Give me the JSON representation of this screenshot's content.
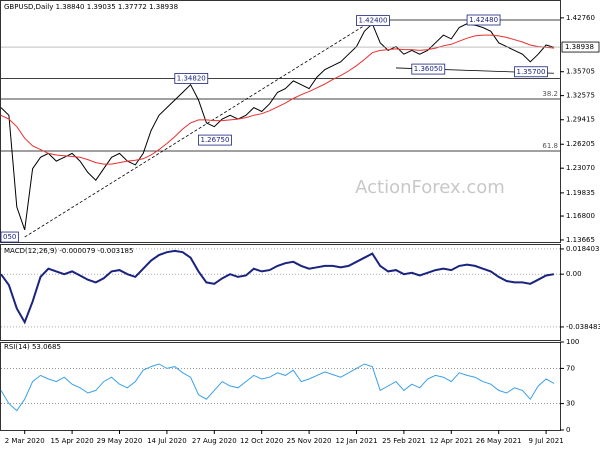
{
  "chart_data": [
    {
      "type": "line",
      "title": "GBPUSD,Daily 1.38840 1.39035 1.37772 1.38938",
      "watermark": "ActionForex.com",
      "categories": [
        null,
        null,
        null,
        "2 Mar 2020",
        null,
        null,
        null,
        null,
        null,
        "15 Apr 2020",
        null,
        null,
        null,
        null,
        null,
        "29 May 2020",
        null,
        null,
        null,
        null,
        null,
        "14 Jul 2020",
        null,
        null,
        null,
        null,
        null,
        "27 Aug 2020",
        null,
        null,
        null,
        null,
        null,
        "12 Oct 2020",
        null,
        null,
        null,
        null,
        null,
        "25 Nov 2020",
        null,
        null,
        null,
        null,
        null,
        "12 Jan 2021",
        null,
        null,
        null,
        null,
        null,
        "25 Feb 2021",
        null,
        null,
        null,
        null,
        null,
        "12 Apr 2021",
        null,
        null,
        null,
        null,
        null,
        "26 May 2021",
        null,
        null,
        null,
        null,
        null,
        "9 Jul 2021",
        null
      ],
      "series": [
        {
          "color": "#000000",
          "values": [
            1.31,
            1.3,
            1.18,
            1.15,
            1.23,
            1.245,
            1.25,
            1.24,
            1.245,
            1.25,
            1.24,
            1.225,
            1.215,
            1.23,
            1.245,
            1.25,
            1.24,
            1.235,
            1.25,
            1.28,
            1.3,
            1.31,
            1.32,
            1.33,
            1.34,
            1.32,
            1.29,
            1.285,
            1.295,
            1.3,
            1.295,
            1.3,
            1.31,
            1.305,
            1.315,
            1.33,
            1.335,
            1.345,
            1.34,
            1.335,
            1.35,
            1.36,
            1.365,
            1.37,
            1.38,
            1.39,
            1.41,
            1.42,
            1.395,
            1.385,
            1.39,
            1.38,
            1.385,
            1.38,
            1.385,
            1.395,
            1.405,
            1.4,
            1.415,
            1.42,
            1.418,
            1.415,
            1.41,
            1.395,
            1.39,
            1.385,
            1.38,
            1.37,
            1.38,
            1.392,
            1.389
          ]
        },
        {
          "color": "#e8312f",
          "values": [
            1.3,
            1.295,
            1.285,
            1.27,
            1.26,
            1.255,
            1.25,
            1.248,
            1.247,
            1.246,
            1.245,
            1.242,
            1.238,
            1.236,
            1.236,
            1.238,
            1.24,
            1.241,
            1.243,
            1.248,
            1.255,
            1.263,
            1.272,
            1.282,
            1.29,
            1.294,
            1.294,
            1.293,
            1.293,
            1.294,
            1.295,
            1.297,
            1.3,
            1.302,
            1.306,
            1.311,
            1.316,
            1.322,
            1.327,
            1.331,
            1.336,
            1.341,
            1.347,
            1.352,
            1.358,
            1.365,
            1.373,
            1.382,
            1.385,
            1.386,
            1.387,
            1.386,
            1.386,
            1.385,
            1.386,
            1.388,
            1.391,
            1.393,
            1.397,
            1.401,
            1.404,
            1.405,
            1.405,
            1.404,
            1.402,
            1.399,
            1.396,
            1.392,
            1.39,
            1.389,
            1.388
          ]
        }
      ],
      "ylim": [
        1.134,
        1.451
      ],
      "yticks": [
        {
          "value": 1.4276,
          "label": "1.42760"
        },
        1.35705,
        1.32575,
        1.29415,
        1.26205,
        {
          "value": 1.2307,
          "label": "1.23070"
        },
        1.19835,
        {
          "value": 1.168,
          "label": "1.16800"
        },
        1.13665
      ],
      "last_price": 1.38938,
      "levels": [
        {
          "value": 1.4248,
          "start": 46
        },
        {
          "value": 1.3482,
          "start": 0
        }
      ],
      "fib": [
        {
          "label": "38.2",
          "value": 1.3213
        },
        {
          "label": "61.8",
          "value": 1.2532
        }
      ],
      "trendlines": [
        {
          "from": [
            3,
            1.1405
          ],
          "to": [
            47,
            1.424
          ]
        },
        {
          "from": [
            50,
            1.362
          ],
          "to": [
            70,
            1.355
          ]
        }
      ],
      "annotations": [
        {
          "label": "1.42400",
          "value": 1.424,
          "index": 45
        },
        {
          "label": "1.42480",
          "value": 1.4248,
          "index": 59
        },
        {
          "label": "1.34820",
          "value": 1.3482,
          "index": 22
        },
        {
          "label": "1.26750",
          "value": 1.2675,
          "index": 25
        },
        {
          "label": "1.36050",
          "value": 1.3605,
          "index": 52
        },
        {
          "label": "1.35700",
          "value": 1.357,
          "index": 65
        },
        {
          "label": "050",
          "value": 1.1405,
          "index": 0
        }
      ]
    },
    {
      "type": "line",
      "title": "MACD(12,26,9) -0.000079 -0.003185",
      "series": [
        {
          "color": "#1a237e",
          "values": [
            0.0,
            -0.008,
            -0.025,
            -0.035,
            -0.02,
            -0.002,
            0.004,
            0.002,
            0.0,
            0.002,
            -0.001,
            -0.004,
            -0.006,
            -0.003,
            0.002,
            0.003,
            0.0,
            -0.002,
            0.004,
            0.01,
            0.014,
            0.016,
            0.017,
            0.016,
            0.012,
            0.002,
            -0.006,
            -0.007,
            -0.003,
            0.0,
            -0.002,
            -0.001,
            0.004,
            0.002,
            0.003,
            0.006,
            0.008,
            0.009,
            0.006,
            0.004,
            0.005,
            0.006,
            0.006,
            0.005,
            0.006,
            0.009,
            0.012,
            0.015,
            0.006,
            0.002,
            0.003,
            0.0,
            0.001,
            -0.001,
            0.001,
            0.003,
            0.004,
            0.003,
            0.006,
            0.007,
            0.006,
            0.004,
            0.002,
            -0.002,
            -0.005,
            -0.006,
            -0.006,
            -0.007,
            -0.004,
            -0.001,
            0.0
          ]
        }
      ],
      "ylim": [
        -0.048,
        0.022
      ],
      "yticks": [
        0.018403,
        {
          "value": 0,
          "label": "0.00"
        },
        -0.038483
      ],
      "grid": true
    },
    {
      "type": "line",
      "title": "RSI(14) 53.0685",
      "series": [
        {
          "color": "#3aa0e8",
          "values": [
            45,
            30,
            22,
            35,
            55,
            62,
            58,
            55,
            60,
            52,
            48,
            42,
            45,
            55,
            60,
            52,
            48,
            55,
            68,
            72,
            75,
            70,
            72,
            65,
            60,
            40,
            35,
            45,
            55,
            50,
            48,
            55,
            62,
            58,
            60,
            65,
            62,
            68,
            55,
            58,
            62,
            66,
            63,
            60,
            65,
            70,
            75,
            72,
            45,
            50,
            55,
            45,
            52,
            48,
            58,
            62,
            60,
            55,
            65,
            62,
            60,
            55,
            52,
            45,
            42,
            48,
            45,
            35,
            50,
            58,
            53
          ]
        }
      ],
      "ylim": [
        0,
        100
      ],
      "yticks": [
        100,
        70,
        30,
        0
      ],
      "grid": true
    }
  ]
}
